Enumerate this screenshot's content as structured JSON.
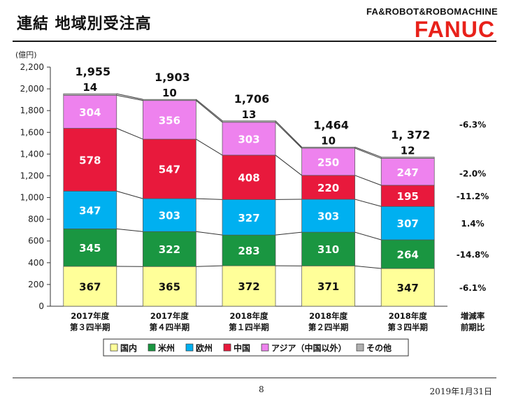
{
  "header": {
    "title": "連結 地域別受注高",
    "brand_tagline": "FA&ROBOT&ROBOMACHINE",
    "brand_logo": "FANUC"
  },
  "footer": {
    "page_number": "8",
    "date": "2019年1月31日"
  },
  "chart_data": {
    "type": "bar",
    "stacked": true,
    "unit_label": "(億円)",
    "categories": [
      [
        "2017年度",
        "第３四半期"
      ],
      [
        "2017年度",
        "第４四半期"
      ],
      [
        "2018年度",
        "第１四半期"
      ],
      [
        "2018年度",
        "第２四半期"
      ],
      [
        "2018年度",
        "第３四半期"
      ]
    ],
    "ylim": [
      0,
      2200
    ],
    "yticks": [
      0,
      200,
      400,
      600,
      800,
      1000,
      1200,
      1400,
      1600,
      1800,
      2000,
      2200
    ],
    "ytick_labels": [
      "0",
      "200",
      "400",
      "600",
      "800",
      "1,000",
      "1,200",
      "1,400",
      "1,600",
      "1,800",
      "2,000",
      "2,200"
    ],
    "series": [
      {
        "name": "国内",
        "values": [
          367,
          365,
          372,
          371,
          347
        ],
        "color": "#ffff99",
        "text_color": "#111111"
      },
      {
        "name": "米州",
        "values": [
          345,
          322,
          283,
          310,
          264
        ],
        "color": "#1a9641",
        "text_color": "#ffffff"
      },
      {
        "name": "欧州",
        "values": [
          347,
          303,
          327,
          303,
          307
        ],
        "color": "#00b0f0",
        "text_color": "#ffffff"
      },
      {
        "name": "中国",
        "values": [
          578,
          547,
          408,
          220,
          195
        ],
        "color": "#e8193c",
        "text_color": "#ffffff"
      },
      {
        "name": "アジア（中国以外）",
        "values": [
          304,
          356,
          303,
          250,
          247
        ],
        "color": "#ee82ee",
        "text_color": "#ffffff"
      },
      {
        "name": "その他",
        "values": [
          14,
          10,
          13,
          10,
          12
        ],
        "color": "#b0b0b0",
        "text_color": "#111111"
      }
    ],
    "totals": [
      "1,955",
      "1,903",
      "1,706",
      "1,464",
      "1, 372"
    ],
    "other_labels": [
      "14",
      "10",
      "13",
      "10",
      "12"
    ],
    "change_header": [
      "増減率",
      "前期比"
    ],
    "change_rates": [
      "-6.3%",
      "-2.0%",
      "-11.2%",
      "1.4%",
      "-14.8%",
      "-6.1%"
    ],
    "legend_position": "bottom"
  }
}
